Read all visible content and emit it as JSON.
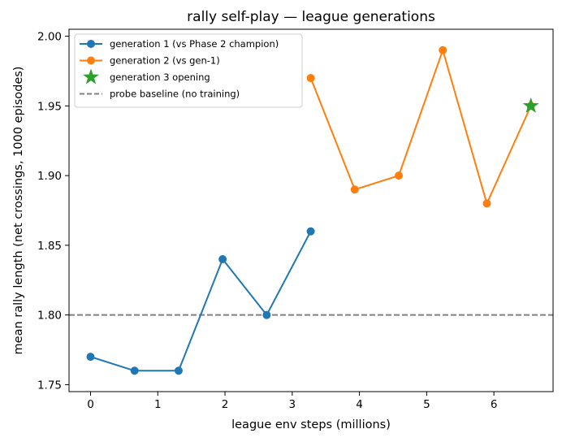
{
  "chart_data": {
    "type": "line",
    "title": "rally self-play — league generations",
    "xlabel": "league env steps (millions)",
    "ylabel": "mean rally length (net crossings, 1000 episodes)",
    "xlim": [
      -0.32,
      6.88
    ],
    "ylim": [
      1.745,
      2.005
    ],
    "xticks": [
      0,
      1,
      2,
      3,
      4,
      5,
      6
    ],
    "yticks": [
      1.75,
      1.8,
      1.85,
      1.9,
      1.95,
      2.0
    ],
    "ytick_labels": [
      "1.75",
      "1.80",
      "1.85",
      "1.90",
      "1.95",
      "2.00"
    ],
    "grid": false,
    "legend_placement": "upper-left",
    "series": [
      {
        "name": "generation 1 (vs Phase 2 champion)",
        "color": "#1f77b4",
        "marker": "circle",
        "line": true,
        "x": [
          0,
          0.655,
          1.31,
          1.965,
          2.62,
          3.275
        ],
        "y": [
          1.77,
          1.76,
          1.76,
          1.84,
          1.8,
          1.86
        ]
      },
      {
        "name": "generation 2 (vs gen-1)",
        "color": "#ff7f0e",
        "marker": "circle",
        "line": true,
        "x": [
          3.275,
          3.93,
          4.585,
          5.24,
          5.895,
          6.55
        ],
        "y": [
          1.97,
          1.89,
          1.9,
          1.99,
          1.88,
          1.95
        ]
      },
      {
        "name": "generation 3 opening",
        "color": "#2ca02c",
        "marker": "star",
        "line": false,
        "x": [
          6.55
        ],
        "y": [
          1.95
        ]
      }
    ],
    "reference_lines": [
      {
        "name": "probe baseline (no training)",
        "orientation": "horizontal",
        "y": 1.8,
        "color": "#808080",
        "style": "dashed"
      }
    ]
  }
}
